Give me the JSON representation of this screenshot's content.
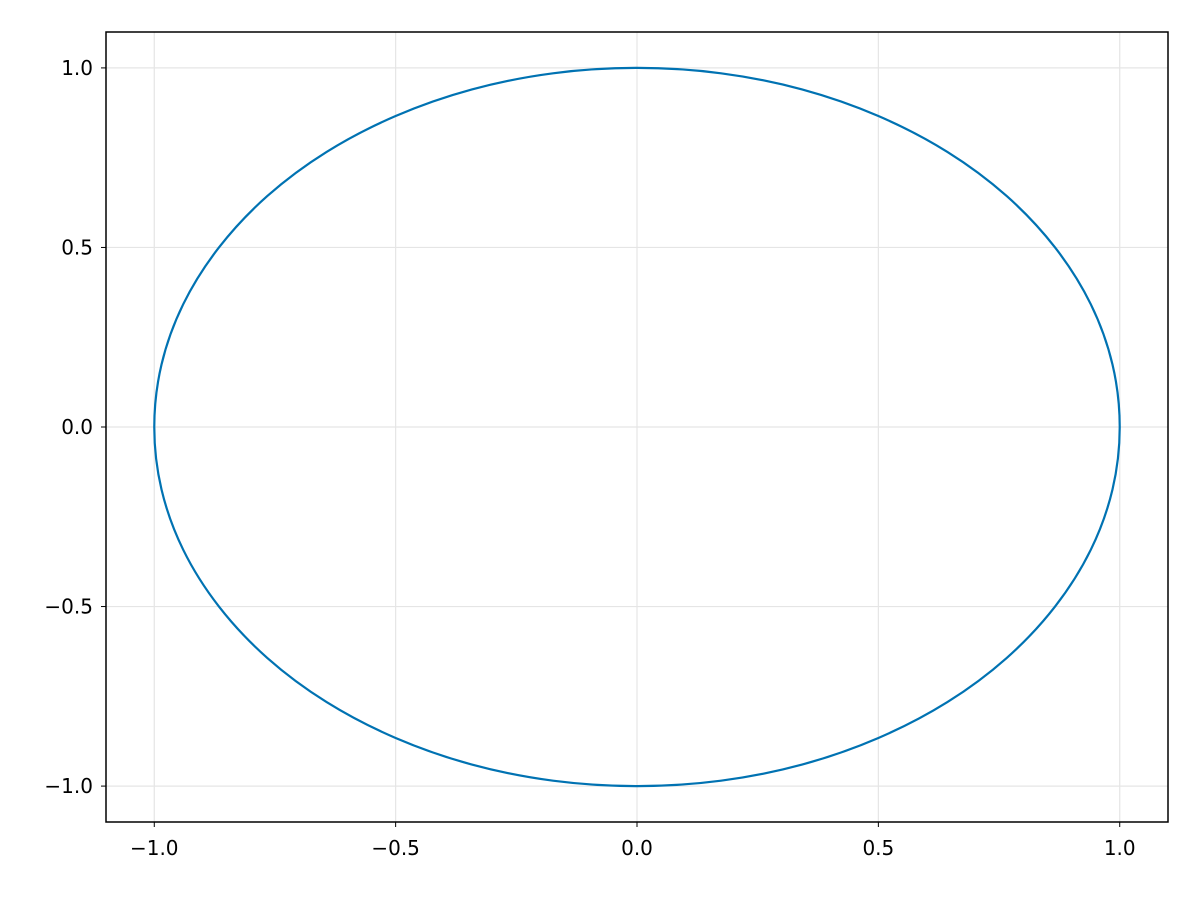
{
  "chart_data": {
    "type": "line",
    "title": "",
    "xlabel": "",
    "ylabel": "",
    "xlim": [
      -1.1,
      1.1
    ],
    "ylim": [
      -1.1,
      1.1
    ],
    "grid": true,
    "xticks": [
      -1.0,
      -0.5,
      0.0,
      0.5,
      1.0
    ],
    "yticks": [
      -1.0,
      -0.5,
      0.0,
      0.5,
      1.0
    ],
    "xtick_labels": [
      "−1.0",
      "−0.5",
      "0.0",
      "0.5",
      "1.0"
    ],
    "ytick_labels": [
      "−1.0",
      "−0.5",
      "0.0",
      "0.5",
      "1.0"
    ],
    "colors": {
      "line": "#0072b2",
      "grid": "#e5e5e5",
      "frame": "#000000"
    },
    "series": [
      {
        "x": [
          1,
          0.985,
          0.94,
          0.866,
          0.766,
          0.643,
          0.5,
          0.342,
          0.174,
          0,
          -0.174,
          -0.342,
          -0.5,
          -0.643,
          -0.766,
          -0.866,
          -0.94,
          -0.985,
          -1,
          -0.985,
          -0.94,
          -0.866,
          -0.766,
          -0.643,
          -0.5,
          -0.342,
          -0.174,
          0,
          0.174,
          0.342,
          0.5,
          0.643,
          0.766,
          0.866,
          0.94,
          0.985,
          1
        ],
        "y": [
          0,
          0.174,
          0.342,
          0.5,
          0.643,
          0.766,
          0.866,
          0.94,
          0.985,
          1,
          0.985,
          0.94,
          0.866,
          0.766,
          0.643,
          0.5,
          0.342,
          0.174,
          0,
          -0.174,
          -0.342,
          -0.5,
          -0.643,
          -0.766,
          -0.866,
          -0.94,
          -0.985,
          -1,
          -0.985,
          -0.94,
          -0.866,
          -0.766,
          -0.643,
          -0.5,
          -0.342,
          -0.174,
          0
        ]
      }
    ]
  }
}
